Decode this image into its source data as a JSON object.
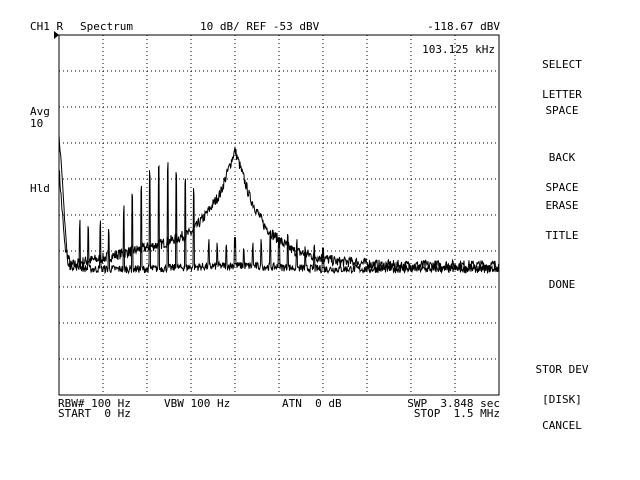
{
  "header": {
    "channel": "CH1 R",
    "measurement": "Spectrum",
    "scale": "10 dB/ REF -53 dBV",
    "marker_value": "-118.67 dBV",
    "marker_freq": "103.125 kHz"
  },
  "side_labels": {
    "avg_label": "Avg",
    "avg_count": "10",
    "hold": "Hld"
  },
  "footer": {
    "rbw": "RBW# 100 Hz",
    "vbw": "VBW 100 Hz",
    "atn": "ATN  0 dB",
    "swp": "SWP  3.848 sec",
    "start": "START  0 Hz",
    "stop": "STOP  1.5 MHz"
  },
  "softkeys": [
    {
      "line1": "SELECT",
      "line2": "LETTER"
    },
    {
      "line1": "SPACE",
      "line2": ""
    },
    {
      "line1": "BACK",
      "line2": "SPACE"
    },
    {
      "line1": "ERASE",
      "line2": "TITLE"
    },
    {
      "line1": "DONE",
      "line2": ""
    },
    {
      "line1": "STOR DEV",
      "line2": "[DISK]"
    },
    {
      "line1": "CANCEL",
      "line2": ""
    }
  ],
  "chart_data": {
    "type": "line",
    "x_unit": "Hz",
    "y_unit": "dBV",
    "xlim": [
      0,
      1500000
    ],
    "ylim": [
      -153,
      -53
    ],
    "grid": true,
    "series": [
      {
        "x": [
          0,
          20000,
          40000,
          80000,
          150000,
          250000,
          350000,
          450000,
          500000,
          550000,
          600000,
          650000,
          700000,
          750000,
          800000,
          850000,
          900000,
          950000,
          1000000,
          1100000,
          1200000,
          1300000,
          1400000,
          1500000
        ],
        "values": [
          -90,
          -112,
          -117,
          -116,
          -115,
          -113,
          -111,
          -108,
          -103,
          -97,
          -85,
          -98,
          -106,
          -110,
          -113,
          -114,
          -115,
          -116,
          -116,
          -117,
          -117,
          -117,
          -117,
          -117
        ]
      },
      {
        "x": [
          0,
          30000,
          100000,
          300000,
          600000,
          900000,
          1200000,
          1500000
        ],
        "values": [
          -80,
          -117,
          -118,
          -118,
          -117,
          -118,
          -118,
          -118
        ],
        "spikes_x": [
          70000,
          100000,
          140000,
          170000,
          220000,
          250000,
          280000,
          310000,
          340000,
          370000,
          400000,
          430000,
          460000,
          510000,
          540000,
          570000,
          600000,
          630000,
          660000,
          690000,
          720000,
          750000,
          780000,
          810000,
          840000,
          870000,
          900000
        ],
        "spikes_y": [
          -107,
          -108,
          -107,
          -109,
          -103,
          -99,
          -97,
          -93,
          -91,
          -91,
          -93,
          -95,
          -98,
          -112,
          -113,
          -113,
          -112,
          -114,
          -113,
          -112,
          -110,
          -112,
          -110,
          -112,
          -114,
          -113,
          -115
        ]
      }
    ]
  }
}
